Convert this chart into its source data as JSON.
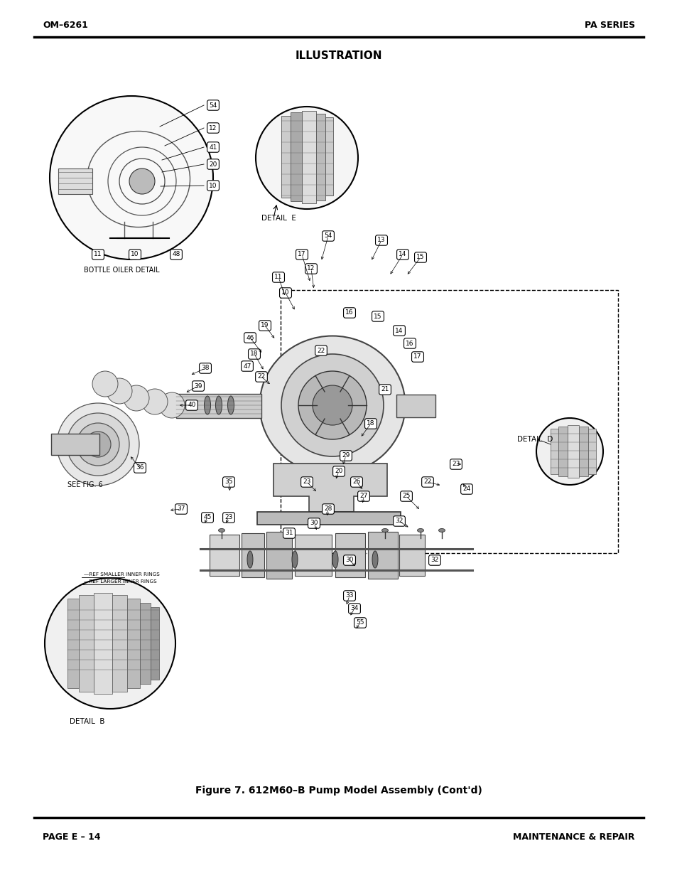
{
  "bg_color": "#ffffff",
  "header_left": "OM–6261",
  "header_right": "PA SERIES",
  "title": "ILLUSTRATION",
  "footer_left": "PAGE E – 14",
  "footer_right": "MAINTENANCE & REPAIR",
  "caption": "Figure 7. 612M60–B Pump Model Assembly (Cont'd)",
  "page_width": 9.54,
  "page_height": 12.35,
  "dpi": 100
}
